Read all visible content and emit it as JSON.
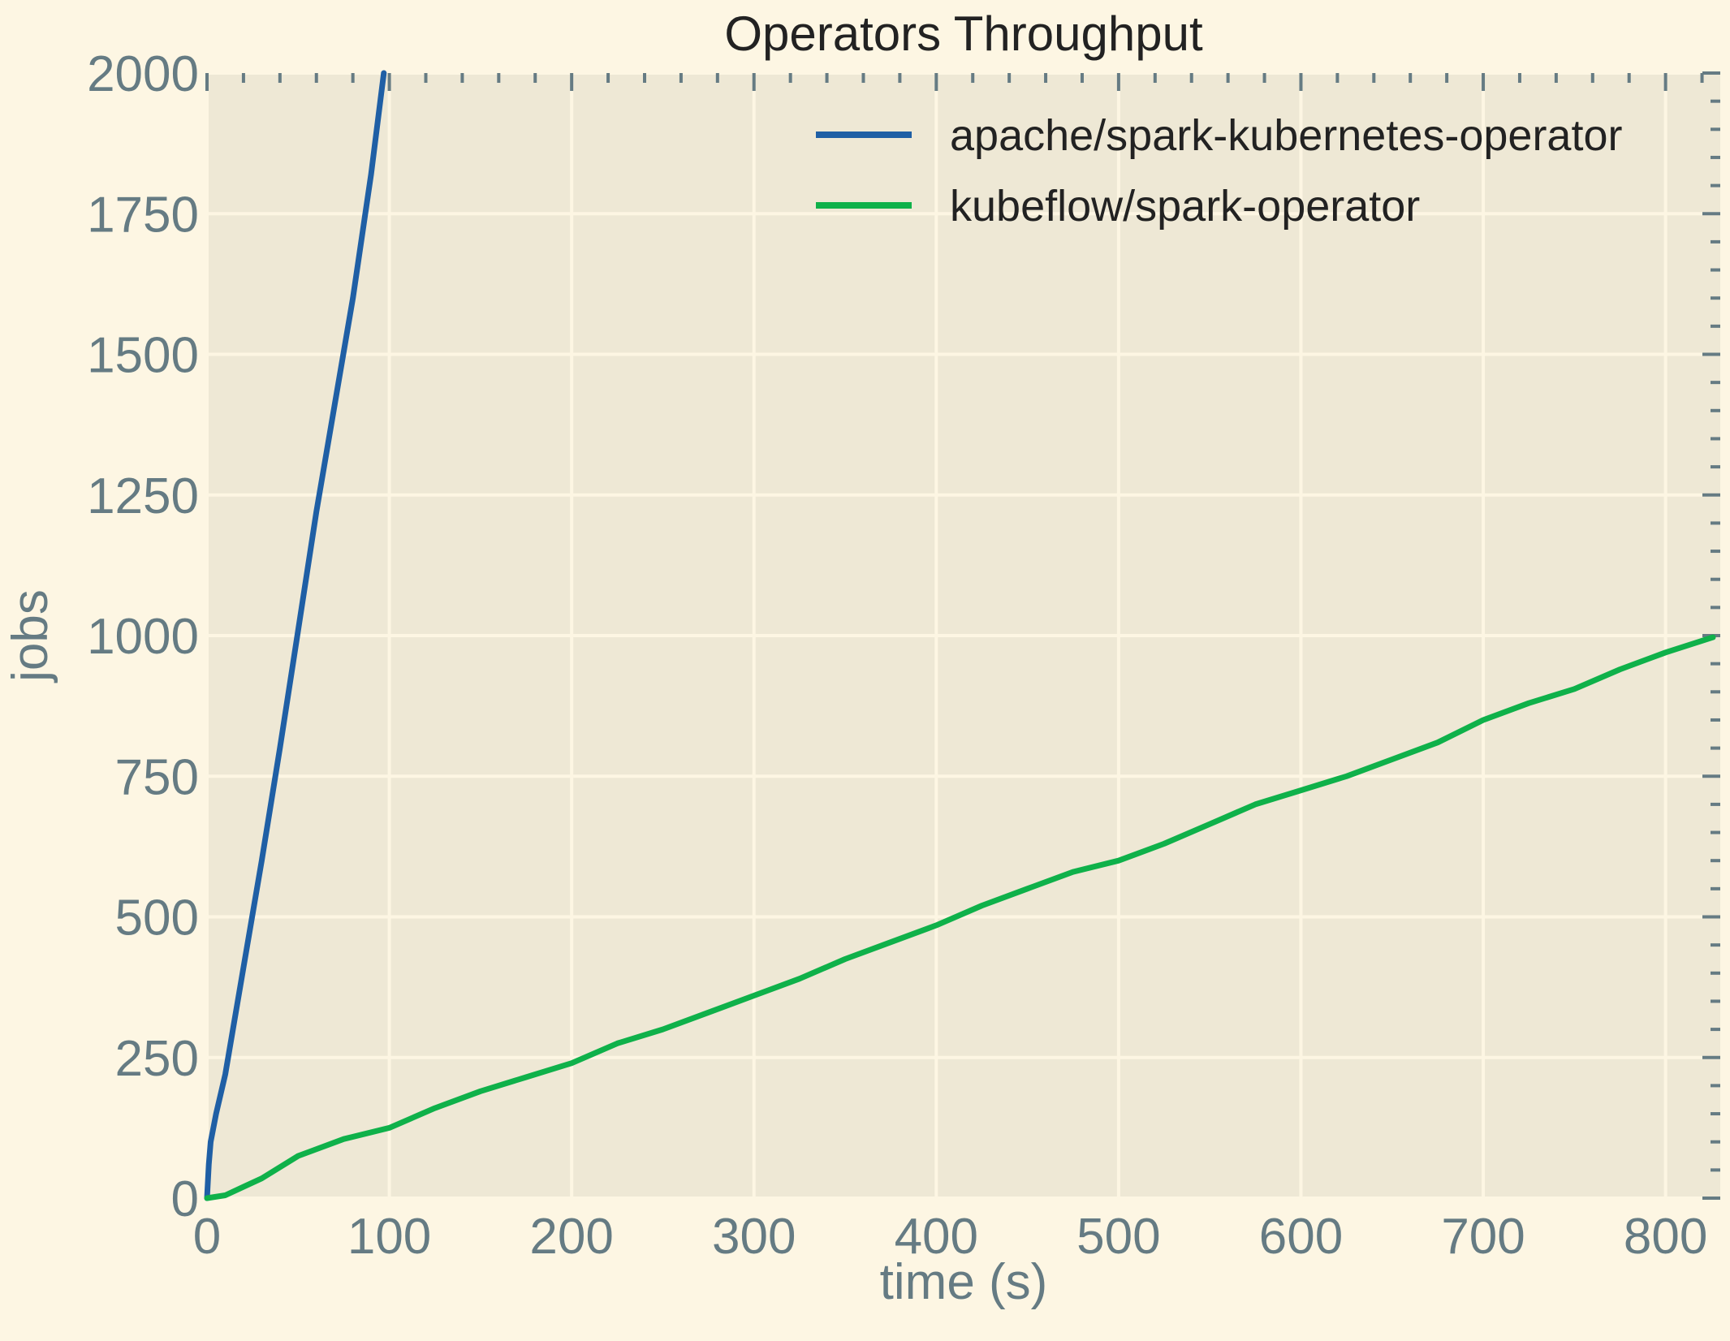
{
  "chart_data": {
    "type": "line",
    "title": "Operators Throughput",
    "xlabel": "time (s)",
    "ylabel": "jobs",
    "xlim": [
      0,
      830
    ],
    "ylim": [
      0,
      2000
    ],
    "xticks": [
      0,
      100,
      200,
      300,
      400,
      500,
      600,
      700,
      800
    ],
    "yticks": [
      0,
      250,
      500,
      750,
      1000,
      1250,
      1500,
      1750,
      2000
    ],
    "grid": true,
    "legend_position": "top-right",
    "series": [
      {
        "name": "apache/spark-kubernetes-operator",
        "color": "#1f5fa5",
        "x": [
          0,
          1,
          2,
          5,
          10,
          20,
          30,
          40,
          50,
          60,
          70,
          80,
          90,
          97
        ],
        "y": [
          0,
          60,
          100,
          150,
          220,
          410,
          600,
          800,
          1010,
          1220,
          1410,
          1600,
          1820,
          2000
        ]
      },
      {
        "name": "kubeflow/spark-operator",
        "color": "#0fb14a",
        "x": [
          0,
          10,
          20,
          30,
          50,
          75,
          100,
          125,
          150,
          175,
          200,
          225,
          250,
          275,
          300,
          325,
          350,
          375,
          400,
          425,
          450,
          475,
          500,
          525,
          550,
          575,
          600,
          625,
          650,
          675,
          700,
          725,
          750,
          775,
          800,
          826
        ],
        "y": [
          0,
          5,
          20,
          35,
          75,
          105,
          125,
          160,
          190,
          215,
          240,
          275,
          300,
          330,
          360,
          390,
          425,
          455,
          485,
          520,
          550,
          580,
          600,
          630,
          665,
          700,
          725,
          750,
          780,
          810,
          850,
          880,
          905,
          940,
          970,
          997
        ]
      }
    ]
  }
}
